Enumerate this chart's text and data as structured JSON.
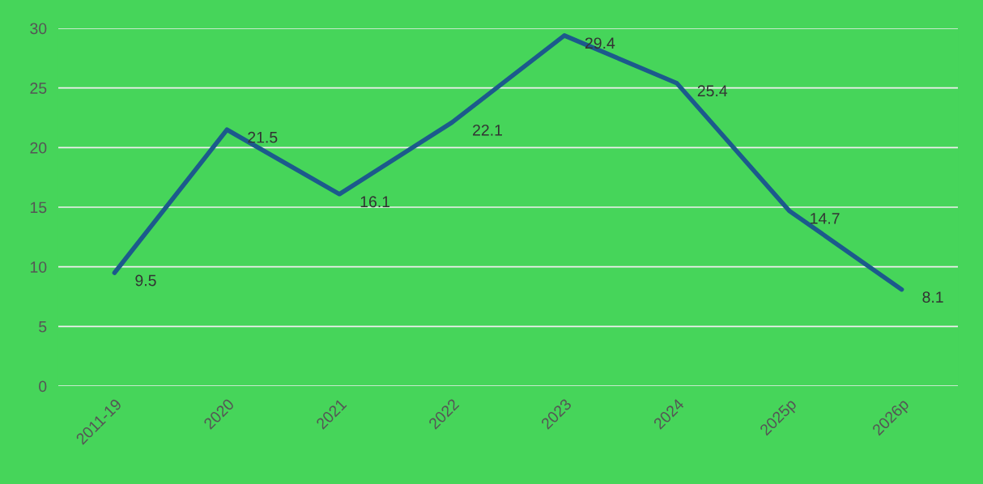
{
  "chart_data": {
    "type": "line",
    "categories": [
      "2011-19",
      "2020",
      "2021",
      "2022",
      "2023",
      "2024",
      "2025p",
      "2026p"
    ],
    "series": [
      {
        "color": "#1c5a8c",
        "values": [
          9.5,
          21.5,
          16.1,
          22.1,
          29.4,
          25.4,
          14.7,
          8.1
        ]
      }
    ],
    "ylim": [
      0,
      30
    ],
    "yticks": [
      0,
      5,
      10,
      15,
      20,
      25,
      30
    ],
    "grid": "y",
    "data_labels": true,
    "marker": "none",
    "line_style": "solid"
  }
}
